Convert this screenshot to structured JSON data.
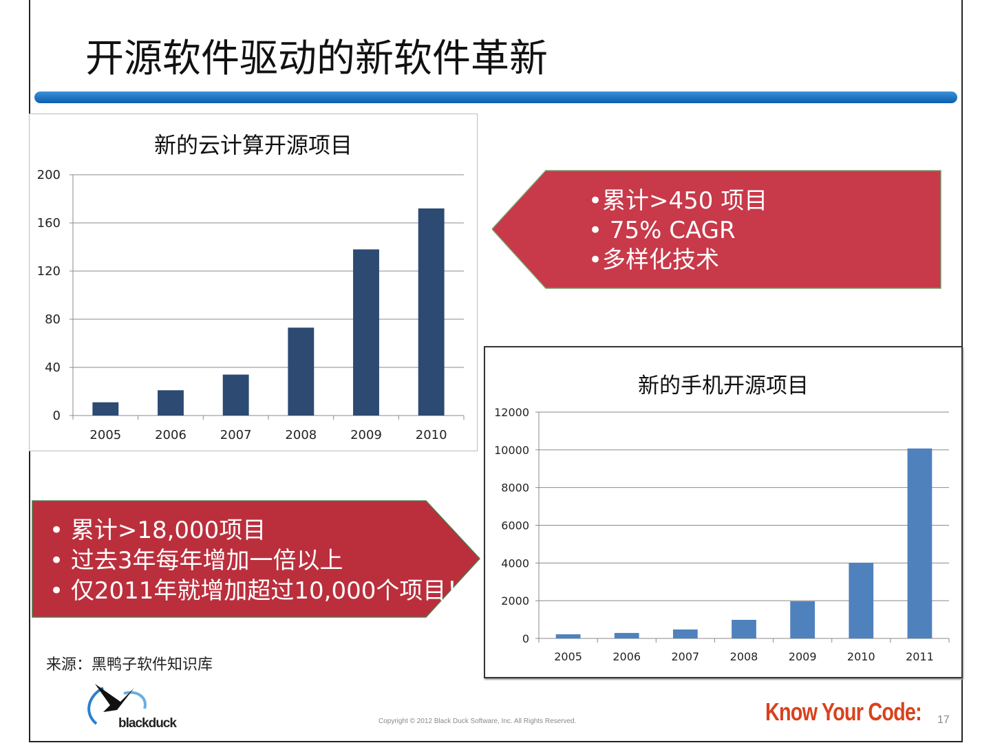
{
  "title": "开源软件驱动的新软件革新",
  "callout_cloud": [
    "•累计>450 项目",
    "• 75% CAGR",
    "•多样化技术"
  ],
  "callout_mobile": [
    "•  累计>18,000项目",
    "• 过去3年每年增加一倍以上",
    "• 仅2011年就增加超过10,000个项目！"
  ],
  "source": "来源：黑鸭子软件知识库",
  "footer": {
    "logo": "blackduck",
    "copyright": "Copyright © 2012 Black Duck Software, Inc.  All Rights Reserved.",
    "tagline": "Know Your Code:",
    "page": "17"
  },
  "colors": {
    "bar_cloud": "#2c4a72",
    "bar_mobile": "#4f81bd",
    "callout": "#c0323f",
    "title_bar": "#1565b8"
  },
  "chart_data": [
    {
      "type": "bar",
      "title": "新的云计算开源项目",
      "categories": [
        "2005",
        "2006",
        "2007",
        "2008",
        "2009",
        "2010"
      ],
      "values": [
        11,
        21,
        34,
        73,
        138,
        172
      ],
      "ylim": [
        0,
        200
      ],
      "yticks": [
        "0",
        "40",
        "80",
        "120",
        "160",
        "200"
      ],
      "grid": true
    },
    {
      "type": "bar",
      "title": "新的手机开源项目",
      "categories": [
        "2005",
        "2006",
        "2007",
        "2008",
        "2009",
        "2010",
        "2011"
      ],
      "values": [
        220,
        290,
        475,
        985,
        1970,
        4010,
        10070
      ],
      "ylim": [
        0,
        12000
      ],
      "yticks": [
        "0",
        "2000",
        "4000",
        "6000",
        "8000",
        "10000",
        "12000"
      ],
      "grid": true
    }
  ]
}
